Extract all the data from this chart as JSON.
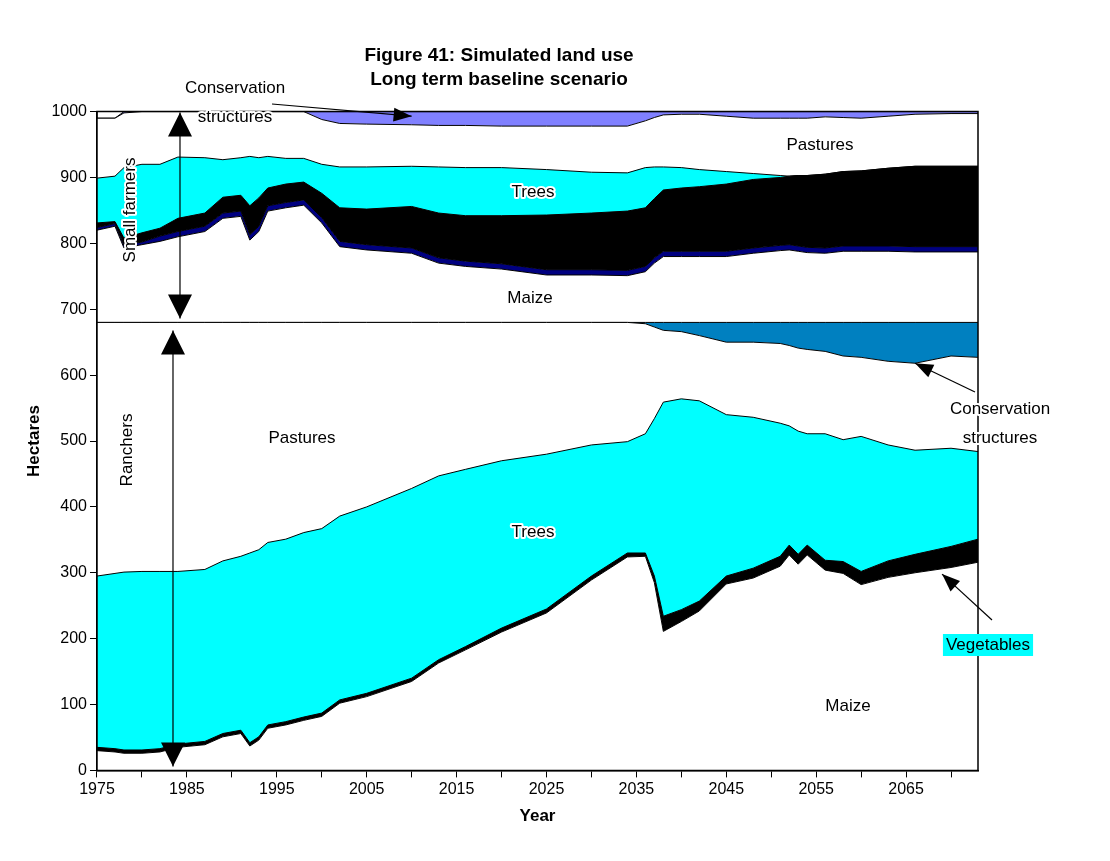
{
  "chart_data": {
    "type": "area",
    "stacked": true,
    "title": "Figure 41: Simulated land use",
    "subtitle": "Long term baseline scenario",
    "xlabel": "Year",
    "ylabel": "Hectares",
    "x": [
      1975,
      1977,
      1978,
      1980,
      1982,
      1984,
      1987,
      1989,
      1991,
      1992,
      1993,
      1994,
      1996,
      1998,
      2000,
      2002,
      2005,
      2010,
      2013,
      2016,
      2020,
      2025,
      2030,
      2034,
      2036,
      2037,
      2038,
      2040,
      2042,
      2045,
      2048,
      2051,
      2052,
      2053,
      2054,
      2056,
      2058,
      2060,
      2063,
      2066,
      2070,
      2073
    ],
    "xlim": [
      1975,
      2073
    ],
    "xticks": [
      1975,
      {
        "value": 1980,
        "label": null
      },
      1985,
      {
        "value": 1990,
        "label": null
      },
      1995,
      {
        "value": 2000,
        "label": null
      },
      2005,
      {
        "value": 2010,
        "label": null
      },
      2015,
      {
        "value": 2020,
        "label": null
      },
      2025,
      {
        "value": 2030,
        "label": null
      },
      2035,
      {
        "value": 2040,
        "label": null
      },
      2045,
      {
        "value": 2050,
        "label": null
      },
      2055,
      {
        "value": 2060,
        "label": null
      },
      2065,
      {
        "value": 2070,
        "label": null
      }
    ],
    "ylim": [
      0,
      1000
    ],
    "yticks": [
      0,
      100,
      200,
      300,
      400,
      500,
      600,
      700,
      800,
      900,
      1000
    ],
    "series": [
      {
        "color": "#ffffff",
        "values": [
          30,
          28,
          26,
          26,
          28,
          35,
          39,
          51,
          56,
          37,
          46,
          64,
          69,
          76,
          82,
          102,
          112,
          135,
          163,
          183,
          210,
          239,
          289,
          324,
          325,
          285,
          211,
          226,
          242,
          283,
          292,
          310,
          327,
          313,
          327,
          304,
          299,
          282,
          293,
          300,
          308,
          316
        ]
      },
      {
        "color": "#000000",
        "values": [
          5,
          5,
          5,
          5,
          5,
          5,
          5,
          5,
          5,
          5,
          5,
          5,
          5,
          5,
          5,
          5,
          5,
          5,
          5,
          5,
          6,
          6,
          6,
          6,
          5,
          10,
          23,
          18,
          15,
          12,
          15,
          15,
          15,
          15,
          15,
          15,
          18,
          20,
          25,
          28,
          32,
          35
        ]
      },
      {
        "color": "#00ffff",
        "values": [
          260,
          266,
          270,
          271,
          269,
          262,
          261,
          262,
          264,
          288,
          284,
          277,
          277,
          280,
          280,
          279,
          283,
          288,
          279,
          269,
          254,
          235,
          199,
          169,
          181,
          239,
          325,
          320,
          304,
          245,
          229,
          202,
          181,
          187,
          169,
          192,
          185,
          205,
          176,
          158,
          149,
          133
        ]
      },
      {
        "color": "#ffffff",
        "values": [
          385,
          381,
          379,
          378,
          378,
          378,
          375,
          362,
          355,
          350,
          345,
          334,
          329,
          319,
          313,
          294,
          280,
          252,
          233,
          223,
          210,
          200,
          186,
          181,
          167,
          139,
          109,
          102,
          99,
          110,
          114,
          121,
          122,
          126,
          128,
          125,
          127,
          120,
          127,
          132,
          140,
          143
        ]
      },
      {
        "color": "#0080c0",
        "values": [
          0,
          0,
          0,
          0,
          0,
          0,
          0,
          0,
          0,
          0,
          0,
          0,
          0,
          0,
          0,
          0,
          0,
          0,
          0,
          0,
          0,
          0,
          0,
          0,
          2,
          7,
          12,
          14,
          20,
          30,
          30,
          32,
          35,
          39,
          41,
          44,
          51,
          53,
          59,
          62,
          51,
          53
        ]
      },
      {
        "color": "#ffffff",
        "values": [
          140,
          146,
          113,
          118,
          123,
          130,
          138,
          158,
          161,
          125,
          138,
          169,
          174,
          178,
          151,
          115,
          110,
          105,
          90,
          85,
          81,
          72,
          72,
          71,
          77,
          90,
          100,
          100,
          100,
          100,
          105,
          109,
          110,
          108,
          106,
          105,
          108,
          108,
          108,
          107,
          107,
          107
        ]
      },
      {
        "color": "#000080",
        "values": [
          4,
          4,
          4,
          4,
          8,
          8,
          8,
          8,
          8,
          8,
          8,
          8,
          8,
          8,
          8,
          8,
          8,
          8,
          8,
          8,
          8,
          8,
          8,
          8,
          8,
          8,
          8,
          8,
          8,
          8,
          8,
          8,
          8,
          8,
          8,
          8,
          8,
          8,
          8,
          8,
          8,
          8
        ]
      },
      {
        "color": "#000000",
        "values": [
          7,
          3,
          11,
          14,
          12,
          20,
          20,
          24,
          24,
          44,
          43,
          27,
          28,
          27,
          37,
          51,
          54,
          63,
          68,
          69,
          73,
          83,
          86,
          90,
          89,
          90,
          93,
          96,
          98,
          102,
          104,
          103,
          104,
          107,
          109,
          112,
          113,
          114,
          118,
          122,
          122,
          122
        ]
      },
      {
        "color": "#00ffff",
        "values": [
          68,
          69,
          107,
          104,
          97,
          93,
          84,
          57,
          57,
          75,
          61,
          48,
          39,
          36,
          44,
          62,
          64,
          61,
          70,
          73,
          73,
          69,
          62,
          58,
          61,
          48,
          35,
          31,
          26,
          19,
          9,
          3,
          0,
          0,
          0,
          0,
          0,
          0,
          0,
          0,
          0,
          0
        ]
      },
      {
        "color": "#ffffff",
        "values": [
          91,
          88,
          83,
          80,
          80,
          69,
          70,
          73,
          70,
          68,
          70,
          68,
          71,
          71,
          68,
          66,
          65,
          63,
          63,
          64,
          63,
          66,
          70,
          71,
          71,
          75,
          79,
          81,
          84,
          84,
          84,
          87,
          88,
          87,
          87,
          87,
          82,
          80,
          79,
          79,
          80,
          80
        ]
      },
      {
        "color": "#8080ff",
        "values": [
          0,
          0,
          2,
          0,
          0,
          0,
          0,
          0,
          0,
          0,
          0,
          0,
          0,
          0,
          12,
          18,
          19,
          20,
          21,
          21,
          22,
          22,
          22,
          22,
          14,
          9,
          5,
          4,
          4,
          7,
          10,
          10,
          10,
          10,
          10,
          8,
          9,
          10,
          7,
          4,
          3,
          3
        ]
      }
    ],
    "annotations": [
      {
        "text": "Conservation structures",
        "x": 2010,
        "y": 993
      },
      "Pastures",
      "Trees",
      "Maize",
      "Small farmers",
      "Ranchers",
      "Pastures",
      "Trees",
      "Maize",
      {
        "text": "Vegetables",
        "x": 2069,
        "y": 298
      },
      {
        "text": "Conservation structures",
        "x": 2066,
        "y": 618
      }
    ],
    "legend": false
  }
}
